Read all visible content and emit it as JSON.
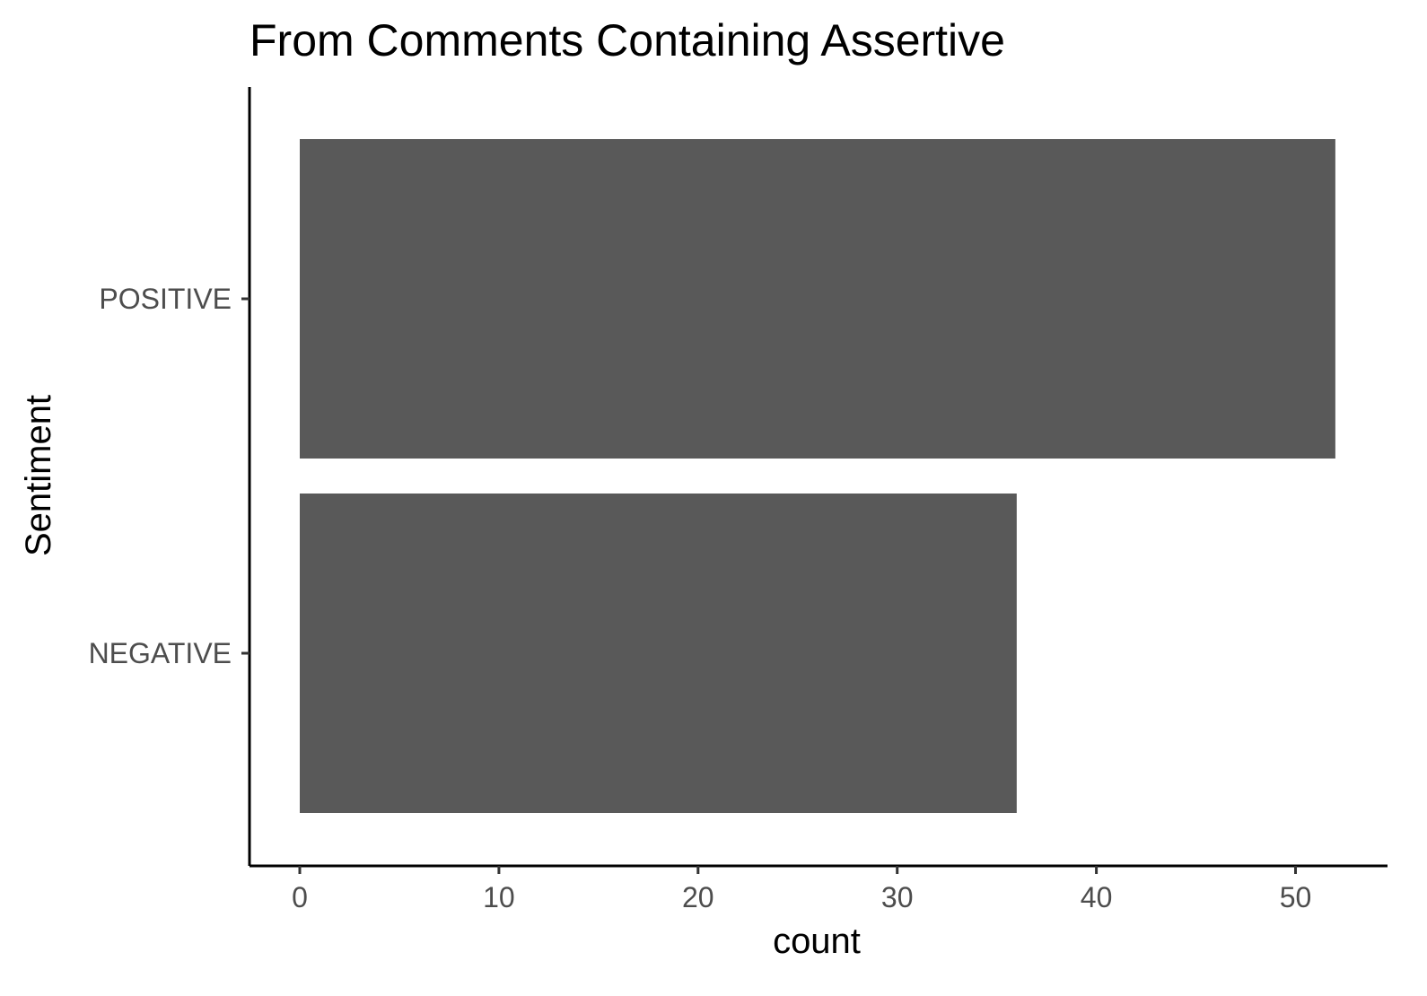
{
  "chart_data": {
    "type": "bar",
    "orientation": "horizontal",
    "title": "From Comments Containing Assertive",
    "xlabel": "count",
    "ylabel": "Sentiment",
    "categories": [
      "POSITIVE",
      "NEGATIVE"
    ],
    "values": [
      52,
      36
    ],
    "xlim": [
      0,
      55
    ],
    "xticks": [
      0,
      10,
      20,
      30,
      40,
      50
    ],
    "grid": false,
    "legend": "none",
    "colors": {
      "bar": "#595959",
      "axis": "#000000",
      "tick_label": "#4d4d4d"
    }
  }
}
